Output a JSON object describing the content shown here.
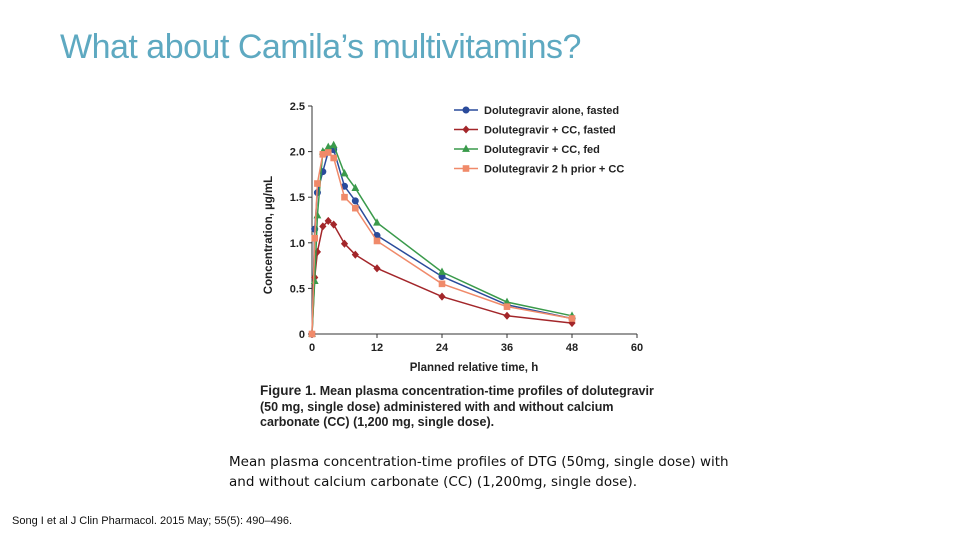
{
  "slide": {
    "title": "What about Camila’s multivitamins?",
    "caption": "Mean plasma concentration-time profiles of DTG (50mg, single dose) with and without calcium carbonate (CC) (1,200mg, single dose).",
    "citation": "Song I et al J Clin Pharmacol. 2015 May; 55(5): 490–496."
  },
  "figure_caption": {
    "label": "Figure 1.",
    "text": "Mean plasma concentration-time profiles of dolutegravir (50 mg, single dose) administered with and without calcium carbonate (CC) (1,200 mg, single dose)."
  },
  "chart_data": {
    "type": "line",
    "xlabel": "Planned relative time, h",
    "ylabel": "Concentration, µg/mL",
    "xlim": [
      0,
      60
    ],
    "ylim": [
      0,
      2.5
    ],
    "x_ticks": [
      0,
      12,
      24,
      36,
      48,
      60
    ],
    "x_tick_labels": [
      "0",
      "12",
      "24",
      "36",
      "48",
      "60"
    ],
    "y_ticks": [
      0,
      0.5,
      1.0,
      1.5,
      2.0,
      2.5
    ],
    "y_tick_labels": [
      "0",
      "0.5",
      "1.0",
      "1.5",
      "2.0",
      "2.5"
    ],
    "legend_position": "top-right",
    "series": [
      {
        "name": "Dolutegravir alone, fasted",
        "color": "#2a4b9b",
        "marker": "circle",
        "x": [
          0,
          0.5,
          1,
          2,
          3,
          4,
          6,
          8,
          12,
          24,
          36,
          48
        ],
        "y": [
          0,
          1.15,
          1.55,
          1.78,
          2.0,
          2.02,
          1.62,
          1.46,
          1.08,
          0.63,
          0.32,
          0.17
        ]
      },
      {
        "name": "Dolutegravir + CC, fasted",
        "color": "#a3262a",
        "marker": "diamond",
        "x": [
          0,
          0.5,
          1,
          2,
          3,
          4,
          6,
          8,
          12,
          24,
          36,
          48
        ],
        "y": [
          0,
          0.62,
          0.9,
          1.18,
          1.24,
          1.2,
          0.99,
          0.87,
          0.72,
          0.41,
          0.2,
          0.12
        ]
      },
      {
        "name": "Dolutegravir + CC, fed",
        "color": "#3a9a4b",
        "marker": "triangle",
        "x": [
          0,
          0.5,
          1,
          2,
          3,
          4,
          6,
          8,
          12,
          24,
          36,
          48
        ],
        "y": [
          0,
          0.58,
          1.3,
          2.0,
          2.05,
          2.07,
          1.76,
          1.6,
          1.22,
          0.68,
          0.35,
          0.2
        ]
      },
      {
        "name": "Dolutegravir 2 h prior + CC",
        "color": "#f08a6a",
        "marker": "square",
        "x": [
          0,
          0.5,
          1,
          2,
          3,
          4,
          6,
          8,
          12,
          24,
          36,
          48
        ],
        "y": [
          0,
          1.05,
          1.65,
          1.97,
          1.99,
          1.93,
          1.5,
          1.38,
          1.02,
          0.55,
          0.3,
          0.17
        ]
      }
    ]
  }
}
